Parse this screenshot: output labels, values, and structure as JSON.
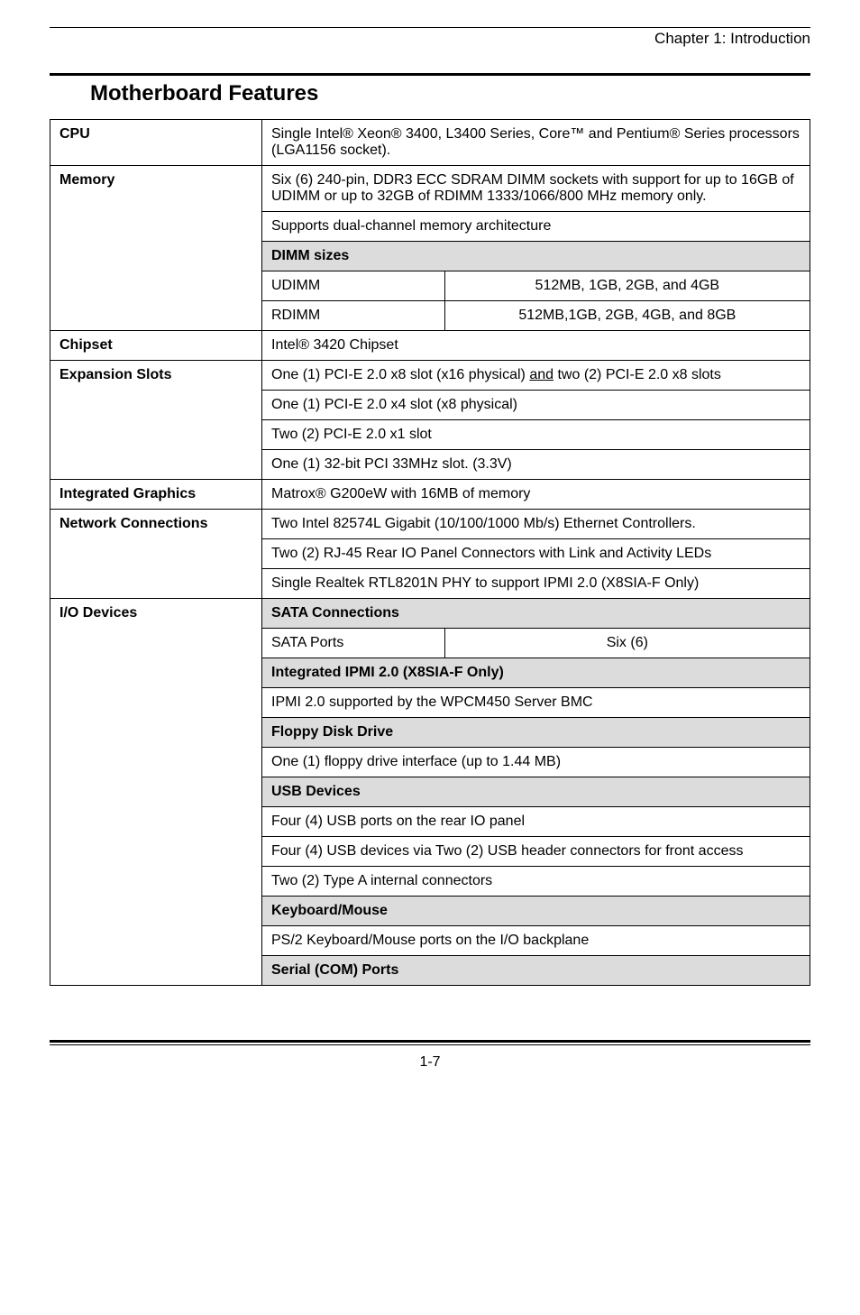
{
  "chapter": "Chapter 1: Introduction",
  "section_title": "Motherboard Features",
  "rows": {
    "cpu_label": "CPU",
    "cpu_text": "Single Intel® Xeon® 3400, L3400 Series, Core™ and Pentium® Series processors (LGA1156 socket).",
    "memory_label": "Memory",
    "memory_text1": "Six (6) 240-pin, DDR3 ECC SDRAM DIMM sockets with support for up to 16GB of UDIMM or up to 32GB of RDIMM 1333/1066/800 MHz memory only.",
    "memory_text2": "Supports dual-channel memory architecture",
    "dimm_sizes": "DIMM sizes",
    "udimm": "UDIMM",
    "udimm_val": "512MB, 1GB, 2GB, and 4GB",
    "rdimm": "RDIMM",
    "rdimm_val": "512MB,1GB, 2GB, 4GB, and 8GB",
    "chipset_label": "Chipset",
    "chipset_text": "Intel® 3420 Chipset",
    "expansion_label": "Expansion Slots",
    "expansion_text2": "One (1) PCI-E 2.0 x4 slot (x8 physical)",
    "expansion_text3": "Two (2) PCI-E 2.0 x1 slot",
    "expansion_text4": "One (1) 32-bit PCI 33MHz slot. (3.3V)",
    "graphics_label": "Integrated Graphics",
    "graphics_text": "Matrox® G200eW with 16MB of memory",
    "network_label": "Network Connections",
    "network_text1": "Two Intel 82574L Gigabit (10/100/1000 Mb/s) Ethernet Controllers.",
    "network_text2": "Two (2) RJ-45 Rear IO Panel Connectors with Link and Activity LEDs",
    "network_text3": "Single Realtek RTL8201N PHY to support IPMI 2.0 (X8SIA-F Only)",
    "io_label": "I/O Devices",
    "sata_connections": "SATA Connections",
    "sata_ports": "SATA Ports",
    "sata_ports_val": "Six (6)",
    "ipmi_head": "Integrated IPMI 2.0 (X8SIA-F Only)",
    "ipmi_text": "IPMI 2.0 supported by the WPCM450 Server BMC",
    "floppy_head": "Floppy Disk Drive",
    "floppy_text": "One (1) floppy drive interface (up to 1.44 MB)",
    "usb_head": "USB Devices",
    "usb_text1": "Four (4) USB ports on the rear IO panel",
    "usb_text2": "Four (4) USB devices via Two (2) USB header connectors for front access",
    "usb_text3": "Two (2) Type A internal connectors",
    "kb_head": "Keyboard/Mouse",
    "kb_text": "PS/2 Keyboard/Mouse ports on the I/O backplane",
    "serial_head": "Serial (COM) Ports"
  },
  "pagenum": "1-7"
}
